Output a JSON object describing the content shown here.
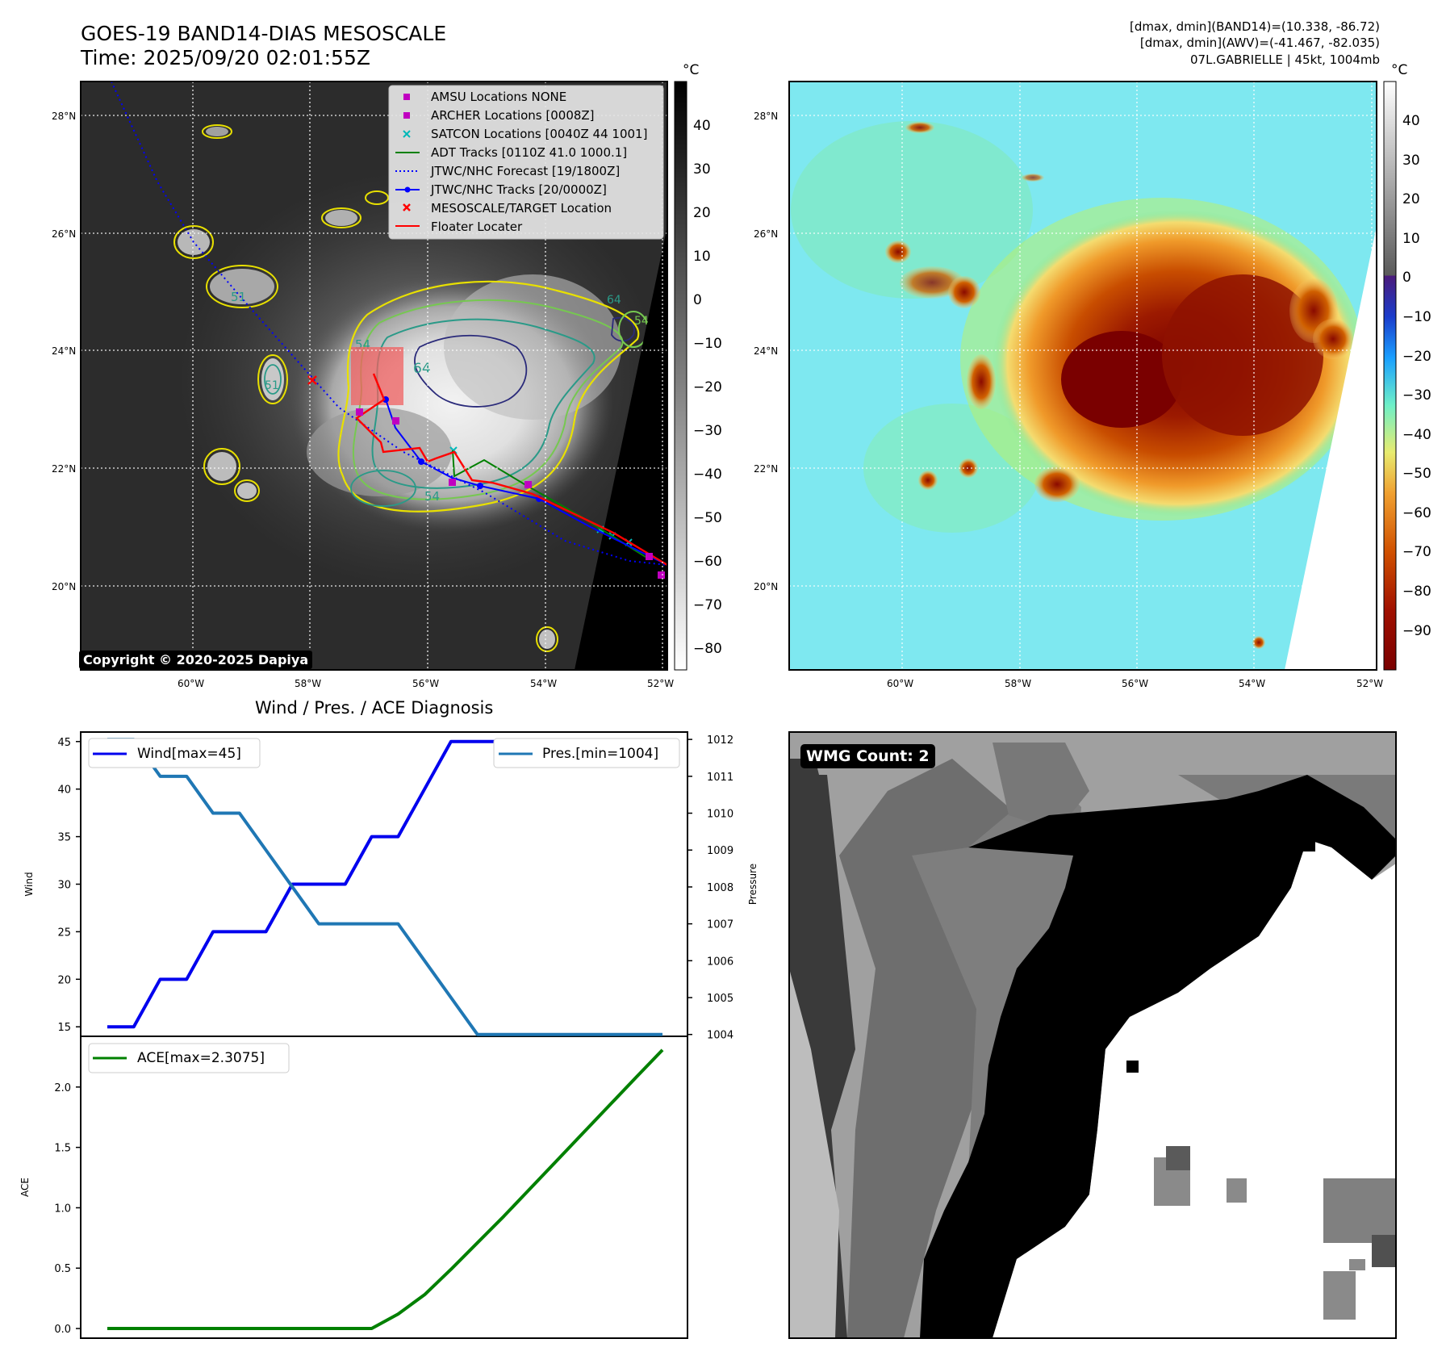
{
  "header": {
    "title_line1": "GOES-19 BAND14-DIAS MESOSCALE",
    "title_line2": "Time: 2025/09/20 02:01:55Z",
    "info_line1": "[dmax, dmin](BAND14)=(10.338, -86.72)",
    "info_line2": "[dmax, dmin](AWV)=(-41.467, -82.035)",
    "info_line3": "07L.GABRIELLE | 45kt, 1004mb"
  },
  "map": {
    "lat_ticks": [
      "28°N",
      "26°N",
      "24°N",
      "22°N",
      "20°N"
    ],
    "lon_ticks": [
      "60°W",
      "58°W",
      "56°W",
      "54°W",
      "52°W"
    ],
    "colorbar1_unit": "°C",
    "colorbar1_ticks": [
      "40",
      "30",
      "20",
      "10",
      "0",
      "−10",
      "−20",
      "−30",
      "−40",
      "−50",
      "−60",
      "−70",
      "−80"
    ],
    "colorbar2_unit": "°C",
    "colorbar2_ticks": [
      "40",
      "30",
      "20",
      "10",
      "0",
      "−10",
      "−20",
      "−30",
      "−40",
      "−50",
      "−60",
      "−70",
      "−80",
      "−90"
    ],
    "copyright": "Copyright © 2020-2025 Dapiya",
    "contour_labels": [
      "64",
      "54",
      "51",
      "64",
      "54",
      "54",
      "51"
    ],
    "legend": [
      {
        "label": "AMSU Locations NONE",
        "marker": "square",
        "color": "#c000c0"
      },
      {
        "label": "ARCHER Locations [0008Z]",
        "marker": "square",
        "color": "#c000c0"
      },
      {
        "label": "SATCON Locations [0040Z 44 1001]",
        "marker": "x",
        "color": "#00b8b8"
      },
      {
        "label": "ADT Tracks [0110Z 41.0 1000.1]",
        "marker": "line",
        "color": "#008000"
      },
      {
        "label": "JTWC/NHC Forecast [19/1800Z]",
        "marker": "dotted",
        "color": "#0000ff"
      },
      {
        "label": "JTWC/NHC Tracks [20/0000Z]",
        "marker": "line-dot",
        "color": "#0000ff"
      },
      {
        "label": "MESOSCALE/TARGET Location",
        "marker": "x",
        "color": "#ff0000"
      },
      {
        "label": "Floater Locater",
        "marker": "line",
        "color": "#ff0000"
      }
    ]
  },
  "diagnosis": {
    "title": "Wind / Pres. / ACE Diagnosis",
    "wind_legend": "Wind[max=45]",
    "pres_legend": "Pres.[min=1004]",
    "ace_legend": "ACE[max=2.3075]",
    "wmg_label": "WMG Count: 2"
  },
  "chart_data": [
    {
      "type": "line",
      "title": "Wind / Pres. / ACE Diagnosis",
      "ylabel": "Wind",
      "ylabel_right": "Pressure",
      "ylim": [
        14,
        46
      ],
      "ylim_right": [
        1003.95,
        1012.2
      ],
      "yticks": [
        "15",
        "20",
        "25",
        "30",
        "35",
        "40",
        "45"
      ],
      "yticks_right": [
        "1004",
        "1005",
        "1006",
        "1007",
        "1008",
        "1009",
        "1010",
        "1011",
        "1012"
      ],
      "series": [
        {
          "name": "Wind[max=45]",
          "color": "#0000ee",
          "axis": "left",
          "values": [
            15,
            15,
            20,
            20,
            25,
            25,
            25,
            30,
            30,
            30,
            35,
            35,
            40,
            45,
            45,
            45,
            45,
            45,
            45,
            45,
            45,
            45
          ]
        },
        {
          "name": "Pres.[min=1004]",
          "color": "#1f77b4",
          "axis": "right",
          "values": [
            1012,
            1012,
            1011,
            1011,
            1010,
            1010,
            1009,
            1008,
            1007,
            1007,
            1007,
            1007,
            1006,
            1005,
            1004,
            1004,
            1004,
            1004,
            1004,
            1004,
            1004,
            1004
          ]
        }
      ]
    },
    {
      "type": "line",
      "ylabel": "ACE",
      "ylim": [
        -0.08,
        2.42
      ],
      "yticks": [
        "0.0",
        "0.5",
        "1.0",
        "1.5",
        "2.0"
      ],
      "series": [
        {
          "name": "ACE[max=2.3075]",
          "color": "#008000",
          "values": [
            0,
            0,
            0,
            0,
            0,
            0,
            0,
            0,
            0,
            0,
            0,
            0.12,
            0.28,
            0.49,
            0.71,
            0.93,
            1.16,
            1.39,
            1.62,
            1.85,
            2.08,
            2.3075
          ]
        }
      ]
    }
  ]
}
